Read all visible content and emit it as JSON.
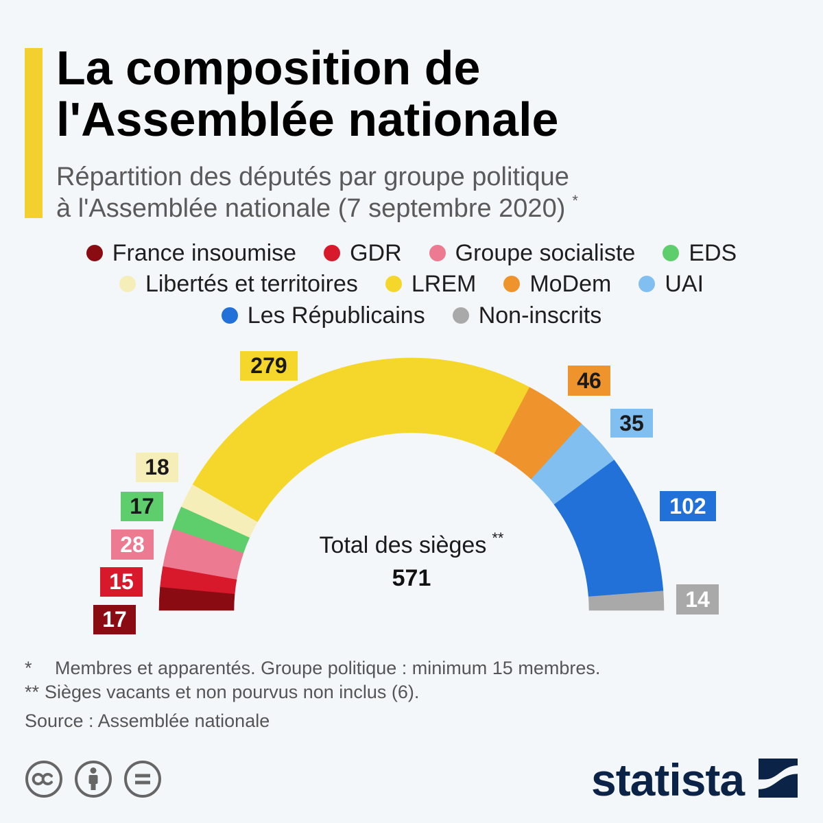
{
  "colors": {
    "background": "#f4f7fa",
    "accent": "#f2d12e",
    "brand": "#0b2346"
  },
  "title": {
    "line1": "La composition de",
    "line2": "l'Assemblée nationale"
  },
  "subtitle": {
    "line1": "Répartition des députés par groupe politique",
    "line2": "à l'Assemblée nationale (7 septembre 2020)",
    "marker": "*"
  },
  "chart_data": {
    "type": "pie",
    "half_circle": true,
    "legend_placement": "top",
    "categories": [
      "France insoumise",
      "GDR",
      "Groupe socialiste",
      "EDS",
      "Libertés et territoires",
      "LREM",
      "MoDem",
      "UAI",
      "Les Républicains",
      "Non-inscrits"
    ],
    "values": [
      17,
      15,
      28,
      17,
      18,
      279,
      46,
      35,
      102,
      14
    ],
    "colors": [
      "#8a0c12",
      "#d7192b",
      "#ec7a90",
      "#5ece6c",
      "#f6eeb8",
      "#f5d72b",
      "#ef932c",
      "#80bff0",
      "#2171d9",
      "#a9a9a9"
    ],
    "label_text_colors": [
      "#ffffff",
      "#ffffff",
      "#ffffff",
      "#1a1a1a",
      "#1a1a1a",
      "#1a1a1a",
      "#1a1a1a",
      "#1a1a1a",
      "#ffffff",
      "#ffffff"
    ],
    "center_label": "Total des sièges",
    "center_label_marker": "**",
    "total": 571
  },
  "footnotes": [
    {
      "marker": "*",
      "text": "Membres et apparentés. Groupe politique : minimum 15 membres."
    },
    {
      "marker": "**",
      "text": "Sièges vacants et non pourvus non inclus (6)."
    }
  ],
  "source": "Source : Assemblée nationale",
  "license_icons": [
    "cc-icon",
    "attribution-icon",
    "no-derivatives-icon"
  ],
  "brand": {
    "wordmark": "statista",
    "icon": "statista-logo-icon"
  }
}
